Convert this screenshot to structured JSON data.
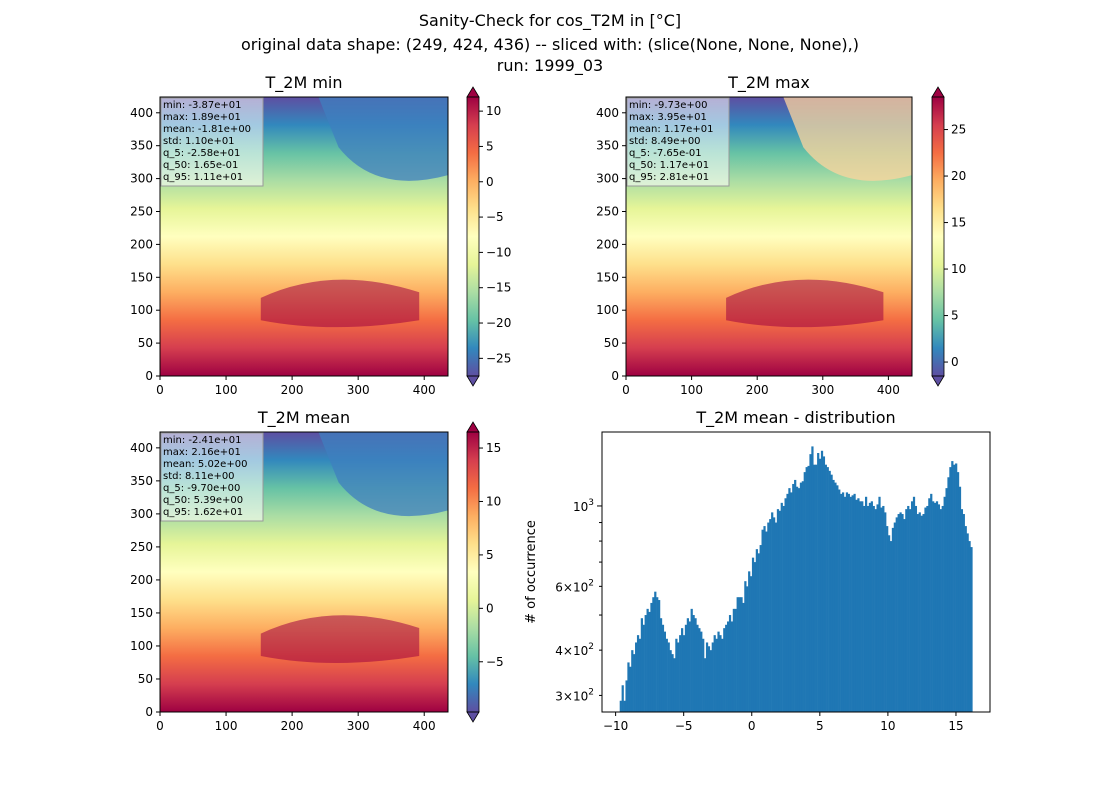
{
  "suptitle": {
    "line1": "Sanity-Check for cos_T2M in [°C]",
    "line2": "original data shape: (249, 424, 436) -- sliced with: (slice(None, None, None),)",
    "line3": "run: 1999_03"
  },
  "chart_data": [
    {
      "type": "heatmap",
      "title": "T_2M min",
      "xlim": [
        0,
        436
      ],
      "ylim": [
        0,
        424
      ],
      "xticks": [
        0,
        100,
        200,
        300,
        400
      ],
      "yticks": [
        0,
        50,
        100,
        150,
        200,
        250,
        300,
        350,
        400
      ],
      "colorbar": {
        "min": -27.5,
        "max": 12,
        "ticks": [
          10,
          5,
          0,
          -5,
          -10,
          -15,
          -20,
          -25
        ]
      },
      "stats": [
        "min: -3.87e+01",
        "max: 1.89e+01",
        "mean: -1.81e+00",
        "std: 1.10e+01",
        "q_5: -2.58e+01",
        "q_50: 1.65e-01",
        "q_95: 1.11e+01"
      ]
    },
    {
      "type": "heatmap",
      "title": "T_2M max",
      "xlim": [
        0,
        436
      ],
      "ylim": [
        0,
        424
      ],
      "xticks": [
        0,
        100,
        200,
        300,
        400
      ],
      "yticks": [
        0,
        50,
        100,
        150,
        200,
        250,
        300,
        350,
        400
      ],
      "colorbar": {
        "min": -1.5,
        "max": 28.5,
        "ticks": [
          25,
          20,
          15,
          10,
          5,
          0
        ]
      },
      "stats": [
        "min: -9.73e+00",
        "max: 3.95e+01",
        "mean: 1.17e+01",
        "std: 8.49e+00",
        "q_5: -7.65e-01",
        "q_50: 1.17e+01",
        "q_95: 2.81e+01"
      ]
    },
    {
      "type": "heatmap",
      "title": "T_2M mean",
      "xlim": [
        0,
        436
      ],
      "ylim": [
        0,
        424
      ],
      "xticks": [
        0,
        100,
        200,
        300,
        400
      ],
      "yticks": [
        0,
        50,
        100,
        150,
        200,
        250,
        300,
        350,
        400
      ],
      "colorbar": {
        "min": -9.7,
        "max": 16.5,
        "ticks": [
          15,
          10,
          5,
          0,
          -5
        ]
      },
      "stats": [
        "min: -2.41e+01",
        "max: 2.16e+01",
        "mean: 5.02e+00",
        "std: 8.11e+00",
        "q_5: -9.70e+00",
        "q_50: 5.39e+00",
        "q_95: 1.62e+01"
      ]
    },
    {
      "type": "bar",
      "title": "T_2M mean - distribution",
      "ylabel": "# of occurrence",
      "xlim": [
        -11,
        17.5
      ],
      "yscale": "log",
      "ylim": [
        270,
        1600
      ],
      "xticks": [
        -10,
        -5,
        0,
        5,
        10,
        15
      ],
      "yticks_major": [
        {
          "value": 1000,
          "base": "10",
          "exp": "3"
        }
      ],
      "yticks_minor_labeled": [
        {
          "value": 600,
          "mant": "6",
          "base": "10",
          "exp": "2"
        },
        {
          "value": 400,
          "mant": "4",
          "base": "10",
          "exp": "2"
        },
        {
          "value": 300,
          "mant": "3",
          "base": "10",
          "exp": "2"
        }
      ],
      "bin_range": [
        -9.7,
        16.2
      ],
      "bar_color": "#1f77b4",
      "counts": [
        290,
        320,
        290,
        330,
        370,
        360,
        400,
        390,
        420,
        440,
        430,
        490,
        470,
        500,
        520,
        510,
        540,
        560,
        580,
        560,
        550,
        490,
        470,
        450,
        430,
        420,
        400,
        390,
        380,
        430,
        420,
        440,
        460,
        440,
        470,
        490,
        480,
        520,
        500,
        490,
        470,
        460,
        450,
        430,
        380,
        420,
        410,
        400,
        420,
        440,
        430,
        450,
        440,
        430,
        460,
        470,
        480,
        500,
        480,
        520,
        520,
        560,
        560,
        560,
        540,
        620,
        600,
        660,
        640,
        720,
        700,
        760,
        740,
        780,
        860,
        880,
        850,
        900,
        920,
        960,
        930,
        900,
        980,
        970,
        1020,
        1000,
        1050,
        1080,
        1120,
        1090,
        1150,
        1180,
        1130,
        1120,
        1160,
        1170,
        1240,
        1280,
        1290,
        1390,
        1460,
        1300,
        1300,
        1400,
        1350,
        1420,
        1370,
        1300,
        1280,
        1250,
        1220,
        1180,
        1160,
        1140,
        1110,
        1080,
        1090,
        1060,
        1090,
        1080,
        1060,
        1070,
        1080,
        1040,
        1050,
        1030,
        1030,
        1000,
        1060,
        1000,
        1020,
        1030,
        1000,
        980,
        1010,
        1060,
        990,
        1000,
        960,
        880,
        830,
        800,
        870,
        900,
        930,
        950,
        960,
        950,
        920,
        980,
        1000,
        980,
        1030,
        1060,
        1000,
        950,
        960,
        940,
        950,
        990,
        1000,
        1050,
        1080,
        1030,
        1020,
        1030,
        1010,
        980,
        1000,
        1060,
        1120,
        1200,
        1280,
        1330,
        1300,
        1310,
        1240,
        1130,
        980,
        950,
        880,
        840,
        800,
        770
      ]
    }
  ]
}
